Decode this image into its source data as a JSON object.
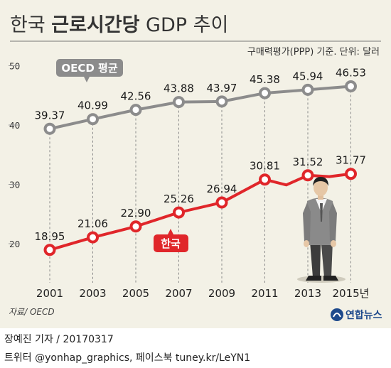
{
  "title": {
    "part1": "한국 ",
    "part2": "근로시간당",
    "part3": " GDP 추이"
  },
  "unit_note": "구매력평가(PPP) 기준. 단위: 달러",
  "source": "자료/ OECD",
  "logo_text": "연합뉴스",
  "byline": "장예진 기자 / 20170317",
  "social": "트위터 @yonhap_graphics, 페이스북 tuney.kr/LeYN1",
  "colors": {
    "panel_bg": "#f3f1e6",
    "oecd": "#8c8c8c",
    "korea": "#e0262a",
    "axis_text": "#333333",
    "logo": "#1e4a8c"
  },
  "chart_data": {
    "type": "line",
    "title": "한국 근로시간당 GDP 추이",
    "xlabel": "",
    "ylabel": "",
    "ylim": [
      15,
      50
    ],
    "yticks": [
      "20",
      "30",
      "40",
      "50"
    ],
    "x_tick_labels": [
      "2001",
      "2003",
      "2005",
      "2007",
      "2009",
      "2011",
      "2013",
      "2015년"
    ],
    "x": [
      "2001",
      "2003",
      "2005",
      "2007",
      "2009",
      "2011",
      "2013",
      "2015"
    ],
    "series": [
      {
        "name": "OECD 평균",
        "color": "#8c8c8c",
        "points": [
          {
            "x": "2001",
            "y": 39.37,
            "label": "39.37"
          },
          {
            "x": "2003",
            "y": 40.99,
            "label": "40.99"
          },
          {
            "x": "2005",
            "y": 42.56,
            "label": "42.56"
          },
          {
            "x": "2007",
            "y": 43.88,
            "label": "43.88"
          },
          {
            "x": "2009",
            "y": 43.97,
            "label": "43.97"
          },
          {
            "x": "2011",
            "y": 45.38,
            "label": "45.38"
          },
          {
            "x": "2013",
            "y": 45.94,
            "label": "45.94"
          },
          {
            "x": "2015",
            "y": 46.53,
            "label": "46.53"
          }
        ]
      },
      {
        "name": "한국",
        "color": "#e0262a",
        "points": [
          {
            "x": "2001",
            "y": 18.95,
            "label": "18.95"
          },
          {
            "x": "2003",
            "y": 21.06,
            "label": "21.06"
          },
          {
            "x": "2005",
            "y": 22.9,
            "label": "22.90"
          },
          {
            "x": "2007",
            "y": 25.26,
            "label": "25.26"
          },
          {
            "x": "2009",
            "y": 26.94,
            "label": "26.94"
          },
          {
            "x": "2011",
            "y": 30.81,
            "label": "30.81"
          },
          {
            "x": "2012",
            "y": 29.9,
            "label": ""
          },
          {
            "x": "2013",
            "y": 31.52,
            "label": "31.52"
          },
          {
            "x": "2014",
            "y": 31.3,
            "label": ""
          },
          {
            "x": "2015",
            "y": 31.77,
            "label": "31.77"
          }
        ]
      }
    ],
    "grid": false,
    "legend": "inline callouts"
  }
}
